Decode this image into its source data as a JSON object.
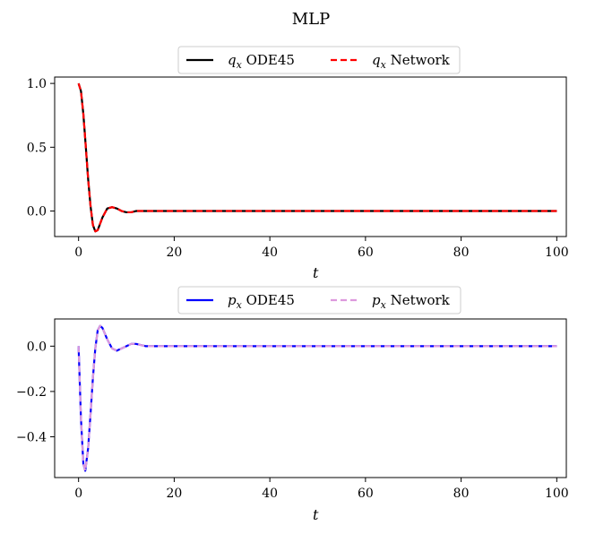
{
  "figure": {
    "title": "MLP"
  },
  "chart_data": [
    {
      "type": "line",
      "title": "",
      "xlabel": "t",
      "ylabel": "",
      "xlim": [
        -5,
        102
      ],
      "ylim": [
        -0.2,
        1.05
      ],
      "xticks": [
        0,
        20,
        40,
        60,
        80,
        100
      ],
      "xtick_labels": [
        "0",
        "20",
        "40",
        "60",
        "80",
        "100"
      ],
      "yticks": [
        0.0,
        0.5,
        1.0
      ],
      "ytick_labels": [
        "0.0",
        "0.5",
        "1.0"
      ],
      "grid": false,
      "legend_position": "top-center",
      "series": [
        {
          "name": "q_x ODE45",
          "legend_var": "q",
          "legend_sub": "x",
          "legend_text": "ODE45",
          "color": "#000000",
          "style": "solid",
          "x": [
            0,
            0.5,
            1,
            1.5,
            2,
            2.5,
            3,
            3.5,
            4,
            4.5,
            5,
            6,
            7,
            8,
            9,
            10,
            11,
            12,
            14,
            20,
            30,
            40,
            50,
            60,
            70,
            80,
            90,
            100
          ],
          "y": [
            1.0,
            0.94,
            0.76,
            0.51,
            0.25,
            0.04,
            -0.11,
            -0.16,
            -0.15,
            -0.1,
            -0.05,
            0.02,
            0.03,
            0.02,
            0.0,
            -0.01,
            -0.01,
            0.0,
            0.0,
            0.0,
            0.0,
            0.0,
            0.0,
            0.0,
            0.0,
            0.0,
            0.0,
            0.0
          ]
        },
        {
          "name": "q_x Network",
          "legend_var": "q",
          "legend_sub": "x",
          "legend_text": "Network",
          "color": "#ff0000",
          "style": "dashed",
          "x": [
            0,
            0.5,
            1,
            1.5,
            2,
            2.5,
            3,
            3.5,
            4,
            4.5,
            5,
            6,
            7,
            8,
            9,
            10,
            11,
            12,
            14,
            20,
            30,
            40,
            50,
            60,
            70,
            80,
            90,
            100
          ],
          "y": [
            1.0,
            0.94,
            0.76,
            0.51,
            0.25,
            0.04,
            -0.11,
            -0.16,
            -0.15,
            -0.1,
            -0.05,
            0.02,
            0.03,
            0.02,
            0.0,
            -0.01,
            -0.01,
            0.0,
            0.0,
            0.0,
            0.0,
            0.0,
            0.0,
            0.0,
            0.0,
            0.0,
            0.0,
            0.0
          ]
        }
      ]
    },
    {
      "type": "line",
      "title": "",
      "xlabel": "t",
      "ylabel": "",
      "xlim": [
        -5,
        102
      ],
      "ylim": [
        -0.58,
        0.12
      ],
      "xticks": [
        0,
        20,
        40,
        60,
        80,
        100
      ],
      "xtick_labels": [
        "0",
        "20",
        "40",
        "60",
        "80",
        "100"
      ],
      "yticks": [
        -0.4,
        -0.2,
        0.0
      ],
      "ytick_labels": [
        "−0.4",
        "−0.2",
        "0.0"
      ],
      "grid": false,
      "legend_position": "top-center",
      "series": [
        {
          "name": "p_x ODE45",
          "legend_var": "p",
          "legend_sub": "x",
          "legend_text": "ODE45",
          "color": "#0000ff",
          "style": "solid",
          "x": [
            0,
            0.5,
            1,
            1.4,
            2,
            2.5,
            3,
            3.5,
            4,
            4.5,
            5,
            6,
            7,
            8,
            9,
            10,
            11,
            12,
            14,
            20,
            30,
            40,
            50,
            60,
            70,
            80,
            90,
            100
          ],
          "y": [
            0.0,
            -0.32,
            -0.52,
            -0.55,
            -0.45,
            -0.3,
            -0.14,
            -0.01,
            0.07,
            0.09,
            0.08,
            0.03,
            -0.01,
            -0.02,
            -0.01,
            0.0,
            0.01,
            0.01,
            0.0,
            0.0,
            0.0,
            0.0,
            0.0,
            0.0,
            0.0,
            0.0,
            0.0,
            0.0
          ]
        },
        {
          "name": "p_x Network",
          "legend_var": "p",
          "legend_sub": "x",
          "legend_text": "Network",
          "color": "#dd99dd",
          "style": "dashed",
          "x": [
            0,
            0.5,
            1,
            1.4,
            2,
            2.5,
            3,
            3.5,
            4,
            4.5,
            5,
            6,
            7,
            8,
            9,
            10,
            11,
            12,
            14,
            20,
            30,
            40,
            50,
            60,
            70,
            80,
            90,
            100
          ],
          "y": [
            0.0,
            -0.32,
            -0.52,
            -0.55,
            -0.45,
            -0.3,
            -0.14,
            -0.01,
            0.07,
            0.09,
            0.08,
            0.03,
            -0.01,
            -0.02,
            -0.01,
            0.0,
            0.01,
            0.01,
            0.0,
            0.0,
            0.0,
            0.0,
            0.0,
            0.0,
            0.0,
            0.0,
            0.0,
            0.0
          ]
        }
      ]
    }
  ]
}
